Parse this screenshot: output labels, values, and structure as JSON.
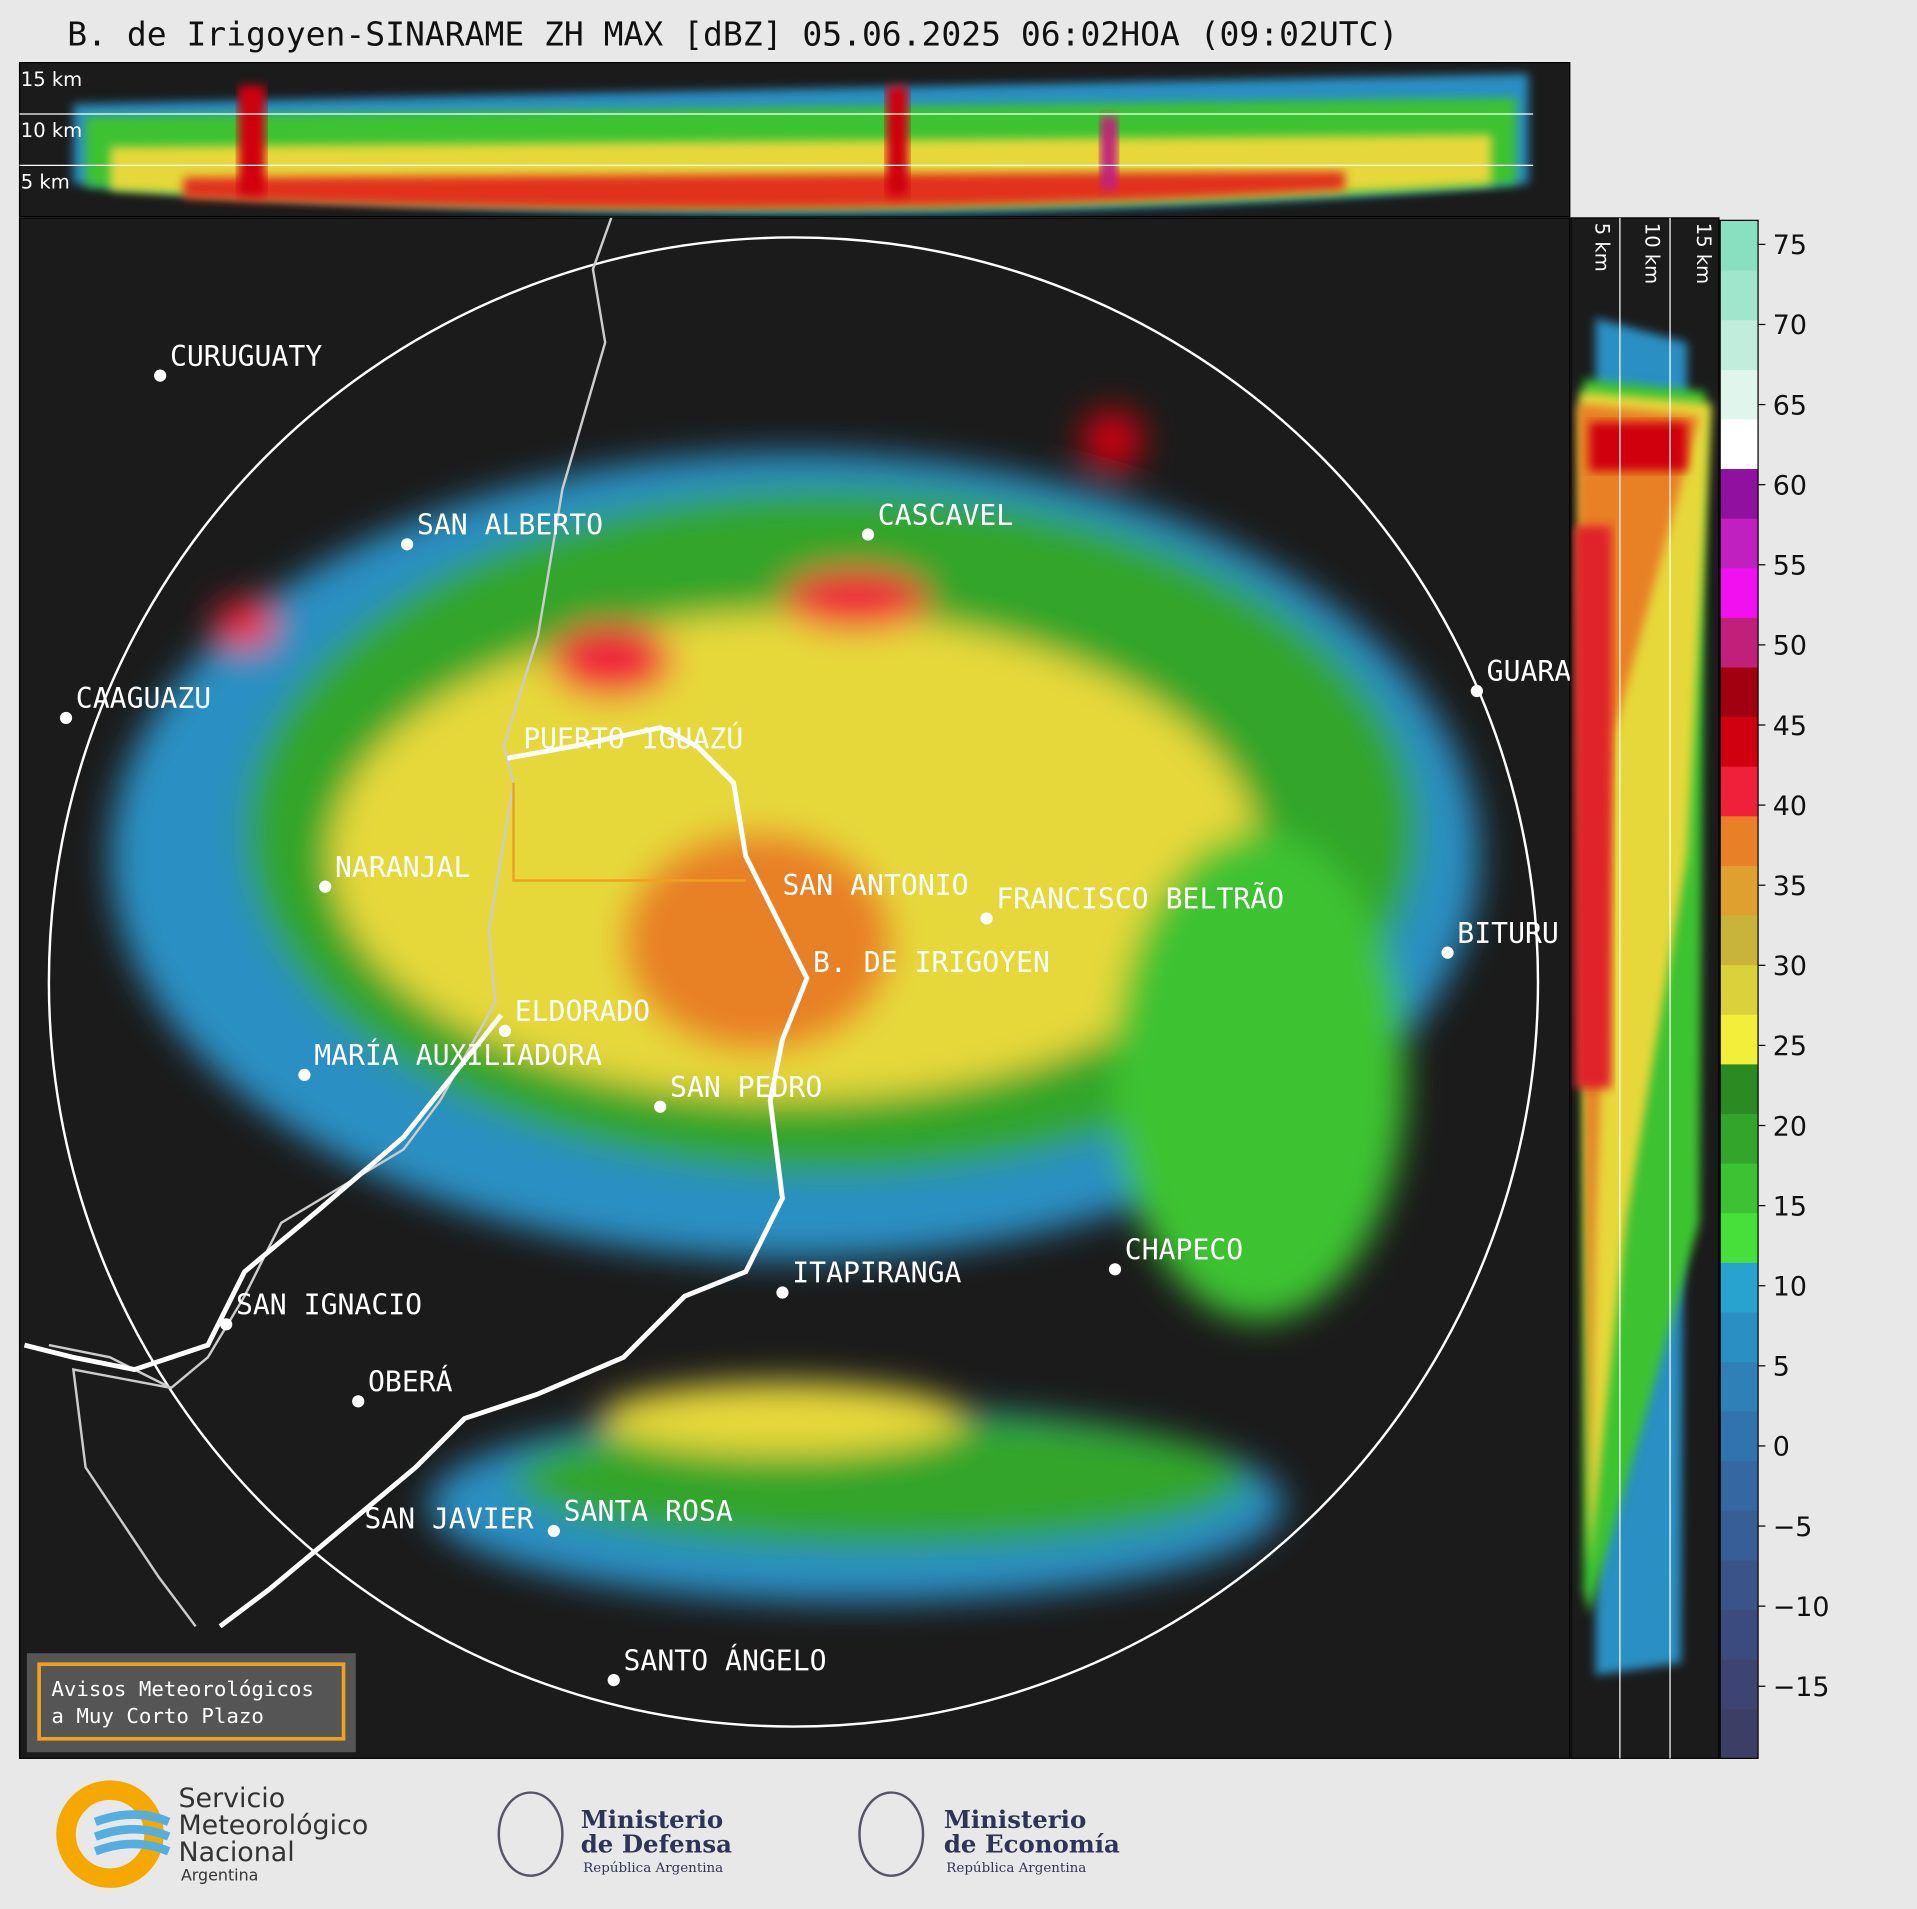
{
  "title": "B. de Irigoyen-SINARAME ZH MAX [dBZ] 05.06.2025 06:02HOA (09:02UTC)",
  "height_labels_top": [
    "15 km",
    "10 km",
    "5 km"
  ],
  "height_labels_side": [
    "5 km",
    "10 km",
    "15 km"
  ],
  "cities": [
    "CURUGUATY",
    "SAN ALBERTO",
    "CASCAVEL",
    "GUARA",
    "CAAGUAZU",
    "PUERTO IGUAZÚ",
    "NARANJAL",
    "SAN ANTONIO",
    "FRANCISCO BELTRÃO",
    "BITURU",
    "B. DE IRIGOYEN",
    "ELDORADO",
    "MARÍA AUXILIADORA",
    "SAN PEDRO",
    "CHAPECO",
    "ITAPIRANGA",
    "SAN IGNACIO",
    "OBERÁ",
    "SAN JAVIER",
    "SANTA ROSA",
    "SANTO ÁNGELO"
  ],
  "colorbar": {
    "range": [
      -19.5,
      76.5
    ],
    "ticks": [
      {
        "value": -15,
        "label": "−15"
      },
      {
        "value": -10,
        "label": "−10"
      },
      {
        "value": -5,
        "label": "−5"
      },
      0,
      5,
      10,
      15,
      20,
      25,
      30,
      35,
      40,
      45,
      50,
      55,
      60,
      65,
      70,
      75
    ],
    "colors": [
      "#3d3e66",
      "#3d4472",
      "#3c4b7e",
      "#3a548a",
      "#385e96",
      "#3568a2",
      "#3173ac",
      "#2e80b6",
      "#2a8fc2",
      "#28a3d0",
      "#47e03a",
      "#3cc232",
      "#33a52a",
      "#2b8a22",
      "#f2ef3a",
      "#d9d23a",
      "#c8b43a",
      "#e0a030",
      "#e88028",
      "#f0203a",
      "#d00010",
      "#a00010",
      "#c0207a",
      "#f010f0",
      "#c020c0",
      "#9010a0",
      "#ffffff",
      "#e0f5ec",
      "#c0eddc",
      "#a0e6cc",
      "#88e0c0"
    ]
  },
  "notice": [
    "Avisos Meteorológicos",
    "a Muy Corto Plazo"
  ],
  "logos": {
    "smn": [
      "Servicio",
      "Meteorológico",
      "Nacional",
      "Argentina"
    ],
    "defensa": [
      "Ministerio",
      "de Defensa",
      "República Argentina"
    ],
    "economia": [
      "Ministerio",
      "de Economía",
      "República Argentina"
    ]
  }
}
